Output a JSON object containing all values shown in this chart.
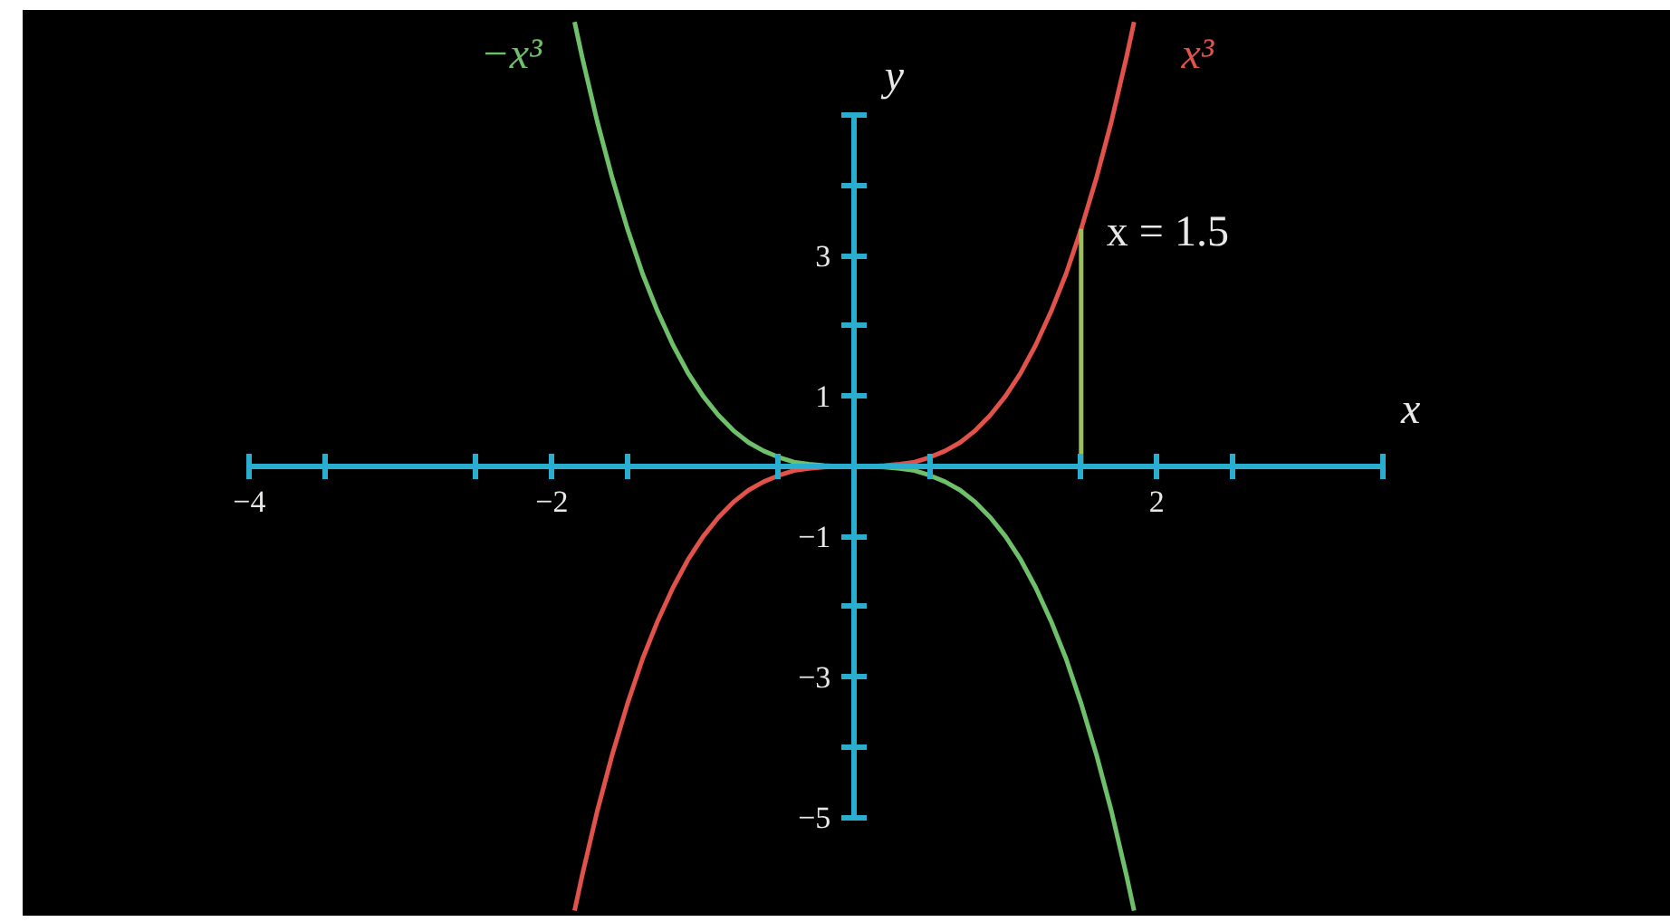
{
  "chart_data": {
    "type": "line",
    "xlabel": "x",
    "ylabel": "y",
    "x": [
      -1.85,
      -1.8,
      -1.7,
      -1.6,
      -1.5,
      -1.4,
      -1.3,
      -1.2,
      -1.1,
      -1.0,
      -0.9,
      -0.8,
      -0.7,
      -0.6,
      -0.5,
      -0.4,
      -0.3,
      -0.2,
      -0.1,
      0,
      0.1,
      0.2,
      0.3,
      0.4,
      0.5,
      0.6,
      0.7,
      0.8,
      0.9,
      1.0,
      1.1,
      1.2,
      1.3,
      1.4,
      1.5,
      1.6,
      1.7,
      1.8,
      1.85
    ],
    "series": [
      {
        "name": "x³",
        "color": "#e0524a",
        "values": [
          -6.33,
          -5.83,
          -4.91,
          -4.1,
          -3.38,
          -2.74,
          -2.2,
          -1.73,
          -1.33,
          -1,
          -0.73,
          -0.51,
          -0.34,
          -0.22,
          -0.13,
          -0.06,
          -0.03,
          -0.01,
          0,
          0,
          0,
          0.01,
          0.03,
          0.06,
          0.13,
          0.22,
          0.34,
          0.51,
          0.73,
          1,
          1.33,
          1.73,
          2.2,
          2.74,
          3.38,
          4.1,
          4.91,
          5.83,
          6.33
        ]
      },
      {
        "name": "−x³",
        "color": "#6fc06a",
        "values": [
          6.33,
          5.83,
          4.91,
          4.1,
          3.38,
          2.74,
          2.2,
          1.73,
          1.33,
          1,
          0.73,
          0.51,
          0.34,
          0.22,
          0.13,
          0.06,
          0.03,
          0.01,
          0,
          0,
          0,
          -0.01,
          -0.03,
          -0.06,
          -0.13,
          -0.22,
          -0.34,
          -0.51,
          -0.73,
          -1,
          -1.33,
          -1.73,
          -2.2,
          -2.74,
          -3.38,
          -4.1,
          -4.91,
          -5.83,
          -6.33
        ]
      },
      {
        "color": "#9cc15a",
        "x": [
          1.5,
          1.5
        ],
        "values": [
          0,
          3.38
        ]
      }
    ],
    "xlim": [
      -5.5,
      5.4
    ],
    "ylim": [
      -6.4,
      6.5
    ],
    "xticks": [
      {
        "value": -4,
        "label": "−4"
      },
      {
        "value": -3.5,
        "label": null
      },
      {
        "value": -2.5,
        "label": null
      },
      {
        "value": -2,
        "label": "−2"
      },
      {
        "value": -1.5,
        "label": null
      },
      {
        "value": -0.5,
        "label": null
      },
      {
        "value": 0.5,
        "label": null
      },
      {
        "value": 1.5,
        "label": null
      },
      {
        "value": 2,
        "label": "2"
      },
      {
        "value": 2.5,
        "label": null
      },
      {
        "value": 3.5,
        "label": null
      }
    ],
    "yticks": [
      {
        "value": -5,
        "label": "−5"
      },
      {
        "value": -4,
        "label": null
      },
      {
        "value": -3,
        "label": "−3"
      },
      {
        "value": -2,
        "label": null
      },
      {
        "value": -1,
        "label": "−1"
      },
      {
        "value": 1,
        "label": "1"
      },
      {
        "value": 2,
        "label": null
      },
      {
        "value": 3,
        "label": "3"
      },
      {
        "value": 4,
        "label": null
      },
      {
        "value": 5,
        "label": null
      }
    ],
    "annotations": [
      {
        "text": "x = 1.5",
        "x": 1.5,
        "y": 3.38
      }
    ],
    "grid": false
  }
}
